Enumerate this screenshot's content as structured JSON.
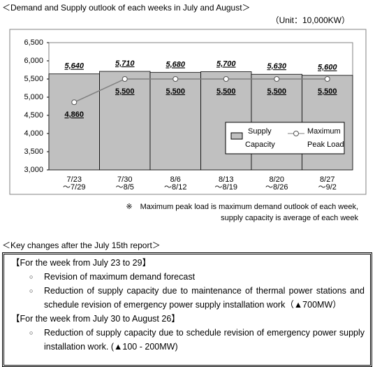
{
  "header": {
    "title": "＜Demand and Supply outlook of each weeks in July and August＞",
    "unit": "（Unit：10,000KW）"
  },
  "chart_data": {
    "type": "bar",
    "categories": [
      [
        "7/23",
        "～7/29"
      ],
      [
        "7/30",
        "～8/5"
      ],
      [
        "8/6",
        "～8/12"
      ],
      [
        "8/13",
        "～8/19"
      ],
      [
        "8/20",
        "～8/26"
      ],
      [
        "8/27",
        "～9/2"
      ]
    ],
    "series": [
      {
        "name": "Supply Capacity",
        "type": "bar",
        "color": "#c0c0c0",
        "values": [
          5640,
          5710,
          5680,
          5700,
          5630,
          5600
        ],
        "value_labels": [
          "5,640",
          "5,710",
          "5,680",
          "5,700",
          "5,630",
          "5,600"
        ]
      },
      {
        "name": "Maximum Peak Load",
        "type": "line",
        "color": "#808080",
        "values": [
          4860,
          5500,
          5500,
          5500,
          5500,
          5500
        ],
        "value_labels": [
          "4,860",
          "5,500",
          "5,500",
          "5,500",
          "5,500",
          "5,500"
        ]
      }
    ],
    "ylim": [
      3000,
      6500
    ],
    "yticks": [
      {
        "value": 3000,
        "label": "3,000"
      },
      {
        "value": 3500,
        "label": "3,500"
      },
      {
        "value": 4000,
        "label": "4,000"
      },
      {
        "value": 4500,
        "label": "4,500"
      },
      {
        "value": 5000,
        "label": "5,000"
      },
      {
        "value": 5500,
        "label": "5,500"
      },
      {
        "value": 6000,
        "label": "6,000"
      },
      {
        "value": 6500,
        "label": "6,500"
      }
    ],
    "legend": "lower right"
  },
  "notes": [
    "※　Maximum peak load is maximum demand outlook of each week,",
    "supply capacity is average of each week"
  ],
  "key_changes": {
    "title": "＜Key changes after the July 15th report＞",
    "sections": [
      {
        "heading": "【For the week from July 23 to 29】",
        "items": [
          "Revision of maximum demand forecast",
          "Reduction of supply capacity due to maintenance of thermal power stations and schedule revision of emergency power supply installation work（▲700MW）"
        ]
      },
      {
        "heading": "【For the week from July 30 to August 26】",
        "items": [
          "Reduction of supply capacity due to schedule revision of emergency power supply installation work. (▲100 - 200MW)"
        ]
      }
    ]
  }
}
